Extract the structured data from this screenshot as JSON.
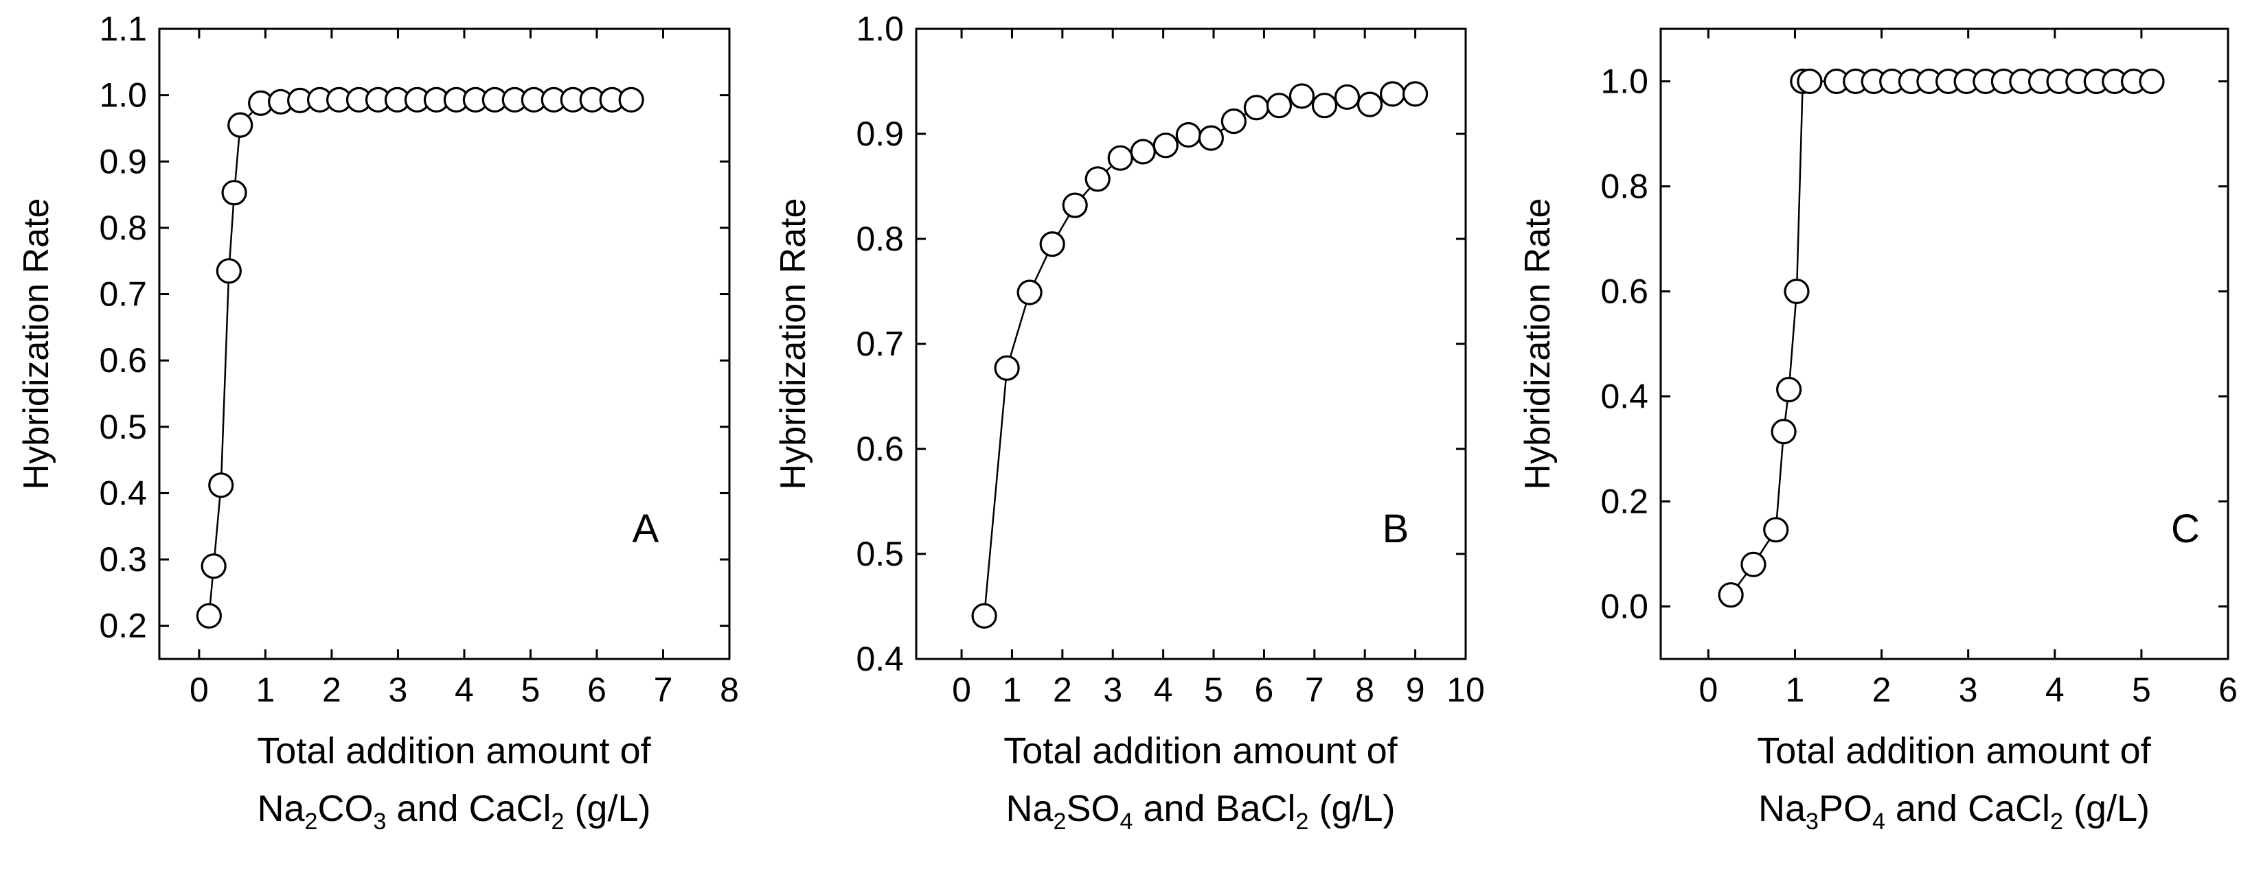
{
  "chart_data": [
    {
      "type": "scatter",
      "panel_letter": "A",
      "ylabel": "Hybridization Rate",
      "xlabel_line1": "Total addition amount of",
      "xlabel_line2": [
        {
          "t": "Na"
        },
        {
          "t": "2",
          "sub": true
        },
        {
          "t": "CO"
        },
        {
          "t": "3",
          "sub": true
        },
        {
          "t": " and CaCl"
        },
        {
          "t": "2",
          "sub": true
        },
        {
          "t": " (g/L)"
        }
      ],
      "xlim": [
        -0.6,
        8
      ],
      "ylim": [
        0.15,
        1.1
      ],
      "xticks": [
        0,
        1,
        2,
        3,
        4,
        5,
        6,
        7,
        8
      ],
      "yticks": [
        0.2,
        0.3,
        0.4,
        0.5,
        0.6,
        0.7,
        0.8,
        0.9,
        1.0,
        1.1
      ],
      "ytick_decimals": 1,
      "grid": false,
      "x": [
        0.15,
        0.22,
        0.33,
        0.45,
        0.53,
        0.62,
        0.93,
        1.23,
        1.52,
        1.82,
        2.11,
        2.41,
        2.7,
        2.99,
        3.29,
        3.58,
        3.88,
        4.17,
        4.46,
        4.76,
        5.05,
        5.35,
        5.64,
        5.93,
        6.23,
        6.52
      ],
      "y": [
        0.215,
        0.29,
        0.412,
        0.735,
        0.853,
        0.955,
        0.988,
        0.99,
        0.992,
        0.993,
        0.993,
        0.993,
        0.993,
        0.993,
        0.993,
        0.993,
        0.993,
        0.993,
        0.993,
        0.993,
        0.993,
        0.993,
        0.993,
        0.993,
        0.993,
        0.993
      ]
    },
    {
      "type": "scatter",
      "panel_letter": "B",
      "ylabel": "Hybridization Rate",
      "xlabel_line1": "Total addition amount of",
      "xlabel_line2": [
        {
          "t": "Na"
        },
        {
          "t": "2",
          "sub": true
        },
        {
          "t": "SO"
        },
        {
          "t": "4",
          "sub": true
        },
        {
          "t": " and BaCl"
        },
        {
          "t": "2",
          "sub": true
        },
        {
          "t": " (g/L)"
        }
      ],
      "xlim": [
        -0.9,
        10
      ],
      "ylim": [
        0.4,
        1.0
      ],
      "xticks": [
        0,
        1,
        2,
        3,
        4,
        5,
        6,
        7,
        8,
        9,
        10
      ],
      "yticks": [
        0.4,
        0.5,
        0.6,
        0.7,
        0.8,
        0.9,
        1.0
      ],
      "ytick_decimals": 1,
      "grid": false,
      "x": [
        0.45,
        0.9,
        1.35,
        1.8,
        2.25,
        2.7,
        3.15,
        3.6,
        4.05,
        4.5,
        4.95,
        5.4,
        5.85,
        6.3,
        6.75,
        7.2,
        7.65,
        8.1,
        8.55,
        9.0
      ],
      "y": [
        0.441,
        0.677,
        0.749,
        0.795,
        0.832,
        0.857,
        0.877,
        0.883,
        0.889,
        0.899,
        0.896,
        0.912,
        0.925,
        0.927,
        0.936,
        0.927,
        0.935,
        0.928,
        0.938,
        0.938
      ]
    },
    {
      "type": "scatter",
      "panel_letter": "C",
      "ylabel": "Hybridization Rate",
      "xlabel_line1": "Total addition amount of",
      "xlabel_line2": [
        {
          "t": "Na"
        },
        {
          "t": "3",
          "sub": true
        },
        {
          "t": "PO"
        },
        {
          "t": "4",
          "sub": true
        },
        {
          "t": " and CaCl"
        },
        {
          "t": "2",
          "sub": true
        },
        {
          "t": " (g/L)"
        }
      ],
      "xlim": [
        -0.55,
        6
      ],
      "ylim": [
        -0.1,
        1.1
      ],
      "xticks": [
        0,
        1,
        2,
        3,
        4,
        5,
        6
      ],
      "yticks": [
        0.0,
        0.2,
        0.4,
        0.6,
        0.8,
        1.0
      ],
      "ytick_decimals": 1,
      "grid": false,
      "x": [
        0.26,
        0.52,
        0.78,
        0.87,
        0.93,
        1.02,
        1.09,
        1.17,
        1.48,
        1.7,
        1.91,
        2.12,
        2.34,
        2.55,
        2.77,
        2.98,
        3.2,
        3.41,
        3.62,
        3.84,
        4.05,
        4.27,
        4.48,
        4.69,
        4.91,
        5.12
      ],
      "y": [
        0.022,
        0.08,
        0.146,
        0.333,
        0.413,
        0.6,
        1.0,
        1.0,
        1.0,
        1.0,
        1.0,
        1.0,
        1.0,
        1.0,
        1.0,
        1.0,
        1.0,
        1.0,
        1.0,
        1.0,
        1.0,
        1.0,
        1.0,
        1.0,
        1.0,
        1.0
      ]
    }
  ]
}
